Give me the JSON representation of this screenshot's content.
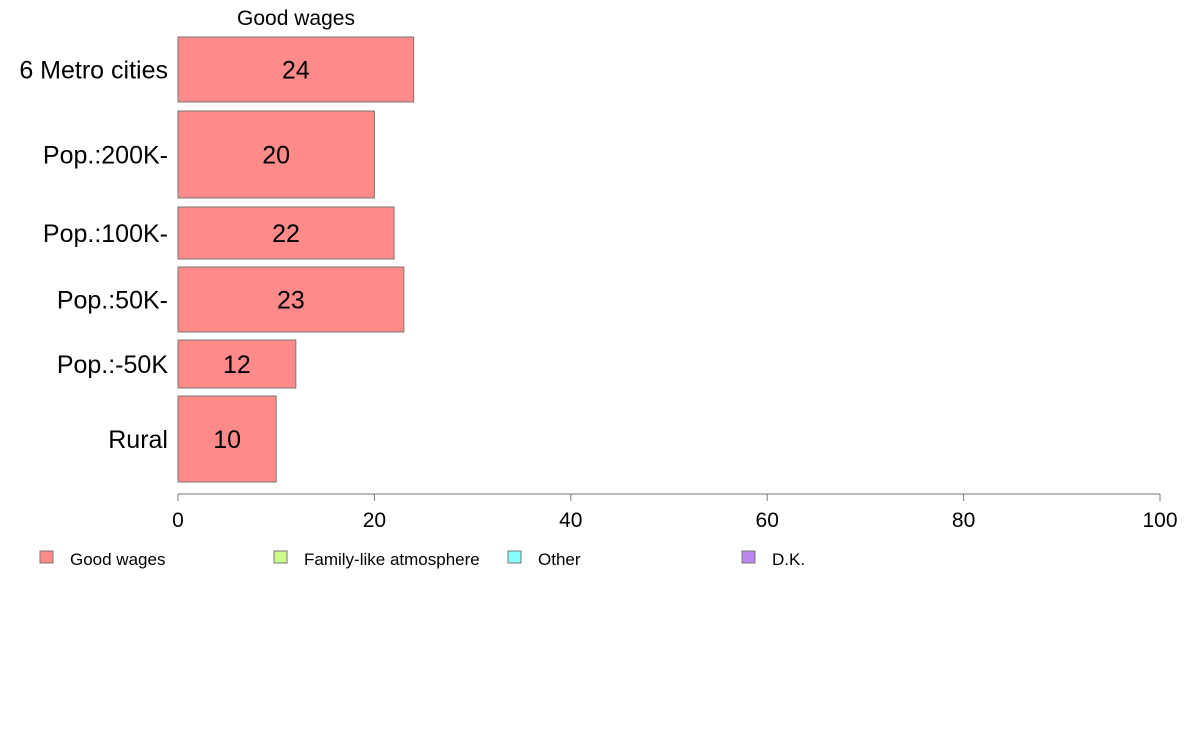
{
  "chart_data": {
    "type": "bar",
    "orientation": "horizontal",
    "title": "Good wages",
    "categories": [
      "6 Metro cities",
      "Pop.:200K-",
      "Pop.:100K-",
      "Pop.:50K-",
      "Pop.:-50K",
      "Rural"
    ],
    "series": [
      {
        "name": "Good wages",
        "color": "#ff8a8a",
        "values": [
          24,
          20,
          22,
          23,
          12,
          10
        ]
      }
    ],
    "xlim": [
      0,
      100
    ],
    "xticks": [
      0,
      20,
      40,
      60,
      80,
      100
    ],
    "grid": false,
    "legend_position": "bottom",
    "legend": [
      {
        "name": "Good wages",
        "color": "#ff8a8a"
      },
      {
        "name": "Family-like atmosphere",
        "color": "#ccff88"
      },
      {
        "name": "Other",
        "color": "#88ffff"
      },
      {
        "name": "D.K.",
        "color": "#bb88ee"
      }
    ]
  }
}
